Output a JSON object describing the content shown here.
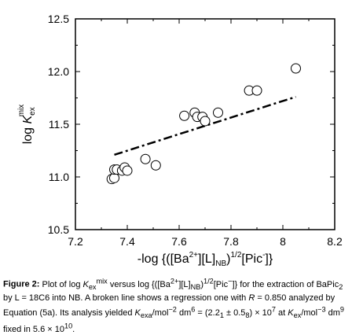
{
  "chart_data": {
    "type": "scatter",
    "xlabel_parts": [
      "-log {([Ba",
      "2+",
      "][L]",
      "NB",
      ")",
      "1/2",
      "[Pic",
      "-",
      "]}"
    ],
    "ylabel_parts": [
      "log ",
      "K",
      "ex",
      "mix"
    ],
    "xlim": [
      7.2,
      8.2
    ],
    "ylim": [
      10.5,
      12.5
    ],
    "x_ticks": [
      7.2,
      7.4,
      7.6,
      7.8,
      8.0,
      8.2
    ],
    "x_tick_labels": [
      "7.2",
      "7.4",
      "7.6",
      "7.8",
      "8",
      "8.2"
    ],
    "y_ticks": [
      10.5,
      11.0,
      11.5,
      12.0,
      12.5
    ],
    "y_tick_labels": [
      "10.5",
      "11.0",
      "11.5",
      "12.0",
      "12.5"
    ],
    "grid": false,
    "series": [
      {
        "marker": "open-circle",
        "points": [
          {
            "x": 7.34,
            "y": 10.98
          },
          {
            "x": 7.35,
            "y": 10.99
          },
          {
            "x": 7.35,
            "y": 11.07
          },
          {
            "x": 7.36,
            "y": 11.07
          },
          {
            "x": 7.38,
            "y": 11.06
          },
          {
            "x": 7.39,
            "y": 11.09
          },
          {
            "x": 7.4,
            "y": 11.06
          },
          {
            "x": 7.47,
            "y": 11.17
          },
          {
            "x": 7.51,
            "y": 11.11
          },
          {
            "x": 7.62,
            "y": 11.58
          },
          {
            "x": 7.66,
            "y": 11.61
          },
          {
            "x": 7.67,
            "y": 11.57
          },
          {
            "x": 7.69,
            "y": 11.57
          },
          {
            "x": 7.7,
            "y": 11.53
          },
          {
            "x": 7.75,
            "y": 11.61
          },
          {
            "x": 7.87,
            "y": 11.82
          },
          {
            "x": 7.9,
            "y": 11.82
          },
          {
            "x": 8.05,
            "y": 12.03
          }
        ]
      }
    ],
    "regression_line": {
      "style": "dash-dot",
      "x": [
        7.35,
        8.05
      ],
      "y": [
        11.21,
        11.76
      ]
    }
  },
  "caption": {
    "label": "Figure 2:",
    "text_html": "Plot of log <i>K</i><sub>ex</sub><sup>mix</sup> versus log {([Ba<sup>2+</sup>][L]<sub>NB</sub>)<sup>1/2</sup>[Pic<sup>−</sup>]} for the extraction of BaPic<sub>2</sub> by L = 18C6 into NB. A broken line shows a regression one with <i>R</i> = 0.850 analyzed by Equation (5a). Its analysis yielded <i>K</i><sub>exa</sub>/mol<sup>−2</sup> dm<sup>6</sup> = (2.2<sub>1</sub> ± 0.5<sub>8</sub>) × 10<sup>7</sup> at <i>K</i><sub>ex</sub>/mol<sup>−3</sup> dm<sup>9</sup> fixed in 5.6 × 10<sup>10</sup>."
  }
}
